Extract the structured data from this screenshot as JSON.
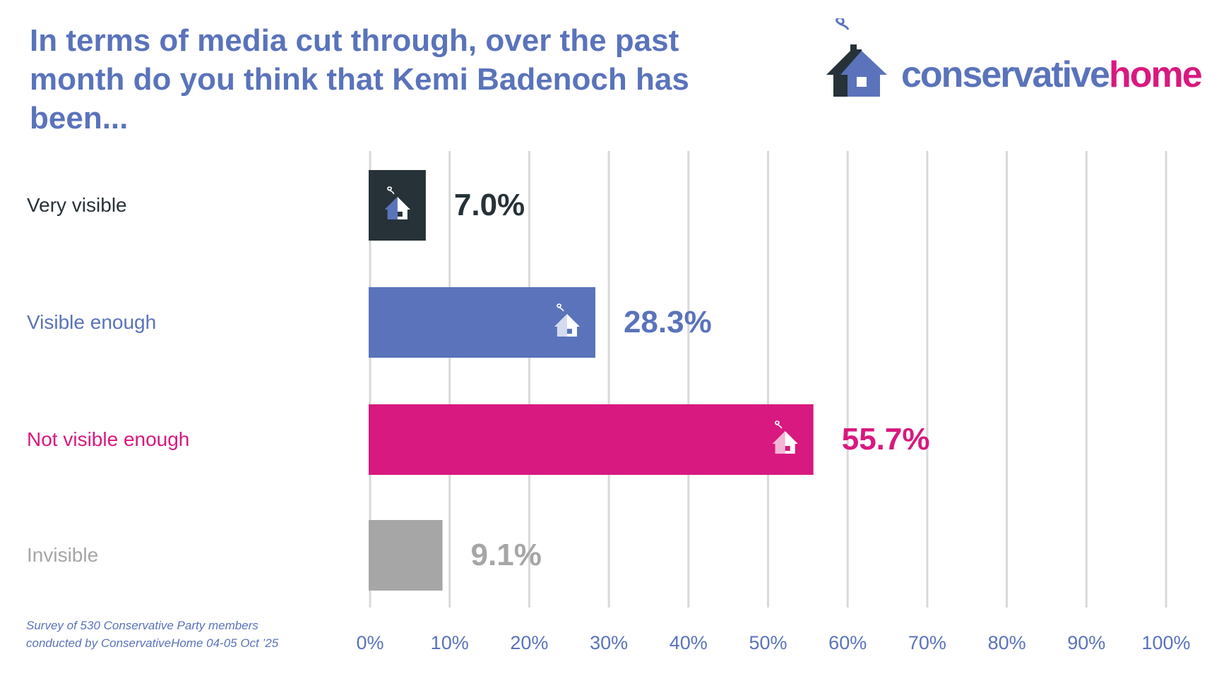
{
  "logo": {
    "part1": "conservative",
    "part2": "home"
  },
  "footnote": {
    "line1": "Survey of 530 Conservative Party members",
    "line2": "conducted by ConservativeHome 04-05 Oct ’25"
  },
  "chart_data": {
    "type": "bar",
    "orientation": "horizontal",
    "title": "In terms of media cut through, over the past month do you think that Kemi Badenoch has been...",
    "categories": [
      "Very visible",
      "Visible enough",
      "Not visible enough",
      "Invisible"
    ],
    "values": [
      7.0,
      28.3,
      55.7,
      9.1
    ],
    "value_labels": [
      "7.0%",
      "28.3%",
      "55.7%",
      "9.1%"
    ],
    "colors": [
      "#263238",
      "#5a73bb",
      "#d8197f",
      "#a6a6a6"
    ],
    "label_colors": [
      "#263238",
      "#5a73bb",
      "#d8197f",
      "#a6a6a6"
    ],
    "xlim": [
      0,
      100
    ],
    "xticks": [
      "0%",
      "10%",
      "20%",
      "30%",
      "40%",
      "50%",
      "60%",
      "70%",
      "80%",
      "90%",
      "100%"
    ],
    "grid": true,
    "xlabel": "",
    "ylabel": ""
  }
}
